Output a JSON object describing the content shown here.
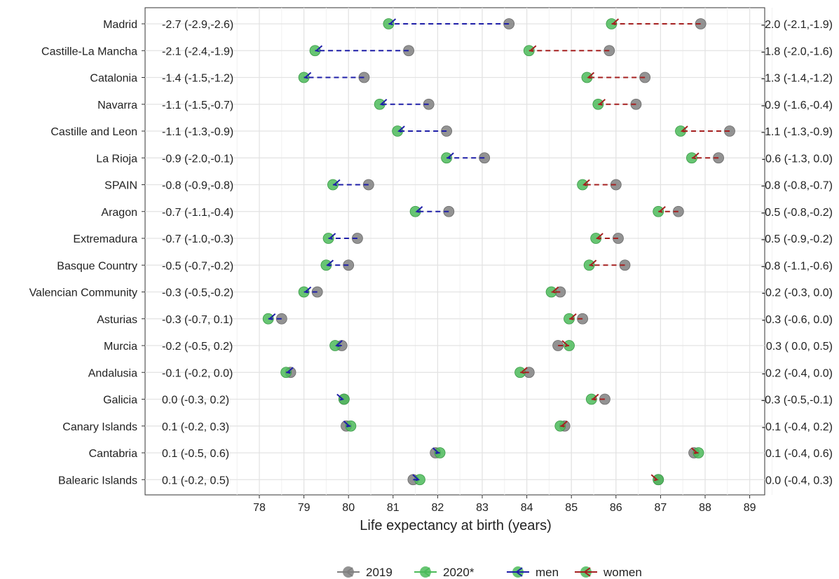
{
  "chart_data": {
    "type": "dumbbell",
    "xlabel": "Life expectancy at birth (years)",
    "xlim": [
      77.3,
      89.6
    ],
    "x_ticks": [
      78,
      79,
      80,
      81,
      82,
      83,
      84,
      85,
      86,
      87,
      88,
      89
    ],
    "grid": true,
    "legend_position": "bottom",
    "legend": [
      {
        "key": "2019",
        "label": "2019",
        "color": "#808080"
      },
      {
        "key": "2020",
        "label": "2020*",
        "color": "#4CBB5A"
      },
      {
        "key": "men",
        "label": "men",
        "color": "#1F1FA8"
      },
      {
        "key": "women",
        "label": "women",
        "color": "#A52020"
      }
    ],
    "colors": {
      "y2019": "#808080",
      "y2020": "#4CBB5A",
      "men": "#1F1FA8",
      "women": "#A52020"
    },
    "regions": [
      {
        "name": "Madrid",
        "men_2019": 83.6,
        "men_2020": 80.9,
        "men_diff": "-2.7 (-2.9,-2.6)",
        "women_2019": 87.9,
        "women_2020": 85.9,
        "women_diff": "-2.0 (-2.1,-1.9)"
      },
      {
        "name": "Castille-La Mancha",
        "men_2019": 81.35,
        "men_2020": 79.25,
        "men_diff": "-2.1 (-2.4,-1.9)",
        "women_2019": 85.85,
        "women_2020": 84.05,
        "women_diff": "-1.8 (-2.0,-1.6)"
      },
      {
        "name": "Catalonia",
        "men_2019": 80.35,
        "men_2020": 79.0,
        "men_diff": "-1.4 (-1.5,-1.2)",
        "women_2019": 86.65,
        "women_2020": 85.35,
        "women_diff": "-1.3 (-1.4,-1.2)"
      },
      {
        "name": "Navarra",
        "men_2019": 81.8,
        "men_2020": 80.7,
        "men_diff": "-1.1 (-1.5,-0.7)",
        "women_2019": 86.45,
        "women_2020": 85.6,
        "women_diff": "-0.9 (-1.6,-0.4)"
      },
      {
        "name": "Castille and Leon",
        "men_2019": 82.2,
        "men_2020": 81.1,
        "men_diff": "-1.1 (-1.3,-0.9)",
        "women_2019": 88.55,
        "women_2020": 87.45,
        "women_diff": "-1.1 (-1.3,-0.9)"
      },
      {
        "name": "La Rioja",
        "men_2019": 83.05,
        "men_2020": 82.2,
        "men_diff": "-0.9 (-2.0,-0.1)",
        "women_2019": 88.3,
        "women_2020": 87.7,
        "women_diff": "-0.6 (-1.3, 0.0)"
      },
      {
        "name": "SPAIN",
        "men_2019": 80.45,
        "men_2020": 79.65,
        "men_diff": "-0.8 (-0.9,-0.8)",
        "women_2019": 86.0,
        "women_2020": 85.25,
        "women_diff": "-0.8 (-0.8,-0.7)"
      },
      {
        "name": "Aragon",
        "men_2019": 82.25,
        "men_2020": 81.5,
        "men_diff": "-0.7 (-1.1,-0.4)",
        "women_2019": 87.4,
        "women_2020": 86.95,
        "women_diff": "-0.5 (-0.8,-0.2)"
      },
      {
        "name": "Extremadura",
        "men_2019": 80.2,
        "men_2020": 79.55,
        "men_diff": "-0.7 (-1.0,-0.3)",
        "women_2019": 86.05,
        "women_2020": 85.55,
        "women_diff": "-0.5 (-0.9,-0.2)"
      },
      {
        "name": "Basque Country",
        "men_2019": 80.0,
        "men_2020": 79.5,
        "men_diff": "-0.5 (-0.7,-0.2)",
        "women_2019": 86.2,
        "women_2020": 85.4,
        "women_diff": "-0.8 (-1.1,-0.6)"
      },
      {
        "name": "Valencian Community",
        "men_2019": 79.3,
        "men_2020": 79.0,
        "men_diff": "-0.3 (-0.5,-0.2)",
        "women_2019": 84.75,
        "women_2020": 84.55,
        "women_diff": "-0.2 (-0.3, 0.0)"
      },
      {
        "name": "Asturias",
        "men_2019": 78.5,
        "men_2020": 78.2,
        "men_diff": "-0.3 (-0.7, 0.1)",
        "women_2019": 85.25,
        "women_2020": 84.95,
        "women_diff": "-0.3 (-0.6, 0.0)"
      },
      {
        "name": "Murcia",
        "men_2019": 79.85,
        "men_2020": 79.7,
        "men_diff": "-0.2 (-0.5, 0.2)",
        "women_2019": 84.7,
        "women_2020": 84.95,
        "women_diff": "0.3 ( 0.0, 0.5)"
      },
      {
        "name": "Andalusia",
        "men_2019": 78.7,
        "men_2020": 78.6,
        "men_diff": "-0.1 (-0.2, 0.0)",
        "women_2019": 84.05,
        "women_2020": 83.85,
        "women_diff": "-0.2 (-0.4, 0.0)"
      },
      {
        "name": "Galicia",
        "men_2019": 79.9,
        "men_2020": 79.9,
        "men_diff": "0.0 (-0.3, 0.2)",
        "women_2019": 85.75,
        "women_2020": 85.45,
        "women_diff": "-0.3 (-0.5,-0.1)"
      },
      {
        "name": "Canary Islands",
        "men_2019": 79.95,
        "men_2020": 80.05,
        "men_diff": "0.1 (-0.2, 0.3)",
        "women_2019": 84.85,
        "women_2020": 84.75,
        "women_diff": "-0.1 (-0.4, 0.2)"
      },
      {
        "name": "Cantabria",
        "men_2019": 81.95,
        "men_2020": 82.05,
        "men_diff": "0.1 (-0.5, 0.6)",
        "women_2019": 87.75,
        "women_2020": 87.85,
        "women_diff": "0.1 (-0.4, 0.6)"
      },
      {
        "name": "Balearic Islands",
        "men_2019": 81.45,
        "men_2020": 81.6,
        "men_diff": "0.1 (-0.2, 0.5)",
        "women_2019": 86.95,
        "women_2020": 86.95,
        "women_diff": "0.0 (-0.4, 0.3)"
      }
    ]
  }
}
